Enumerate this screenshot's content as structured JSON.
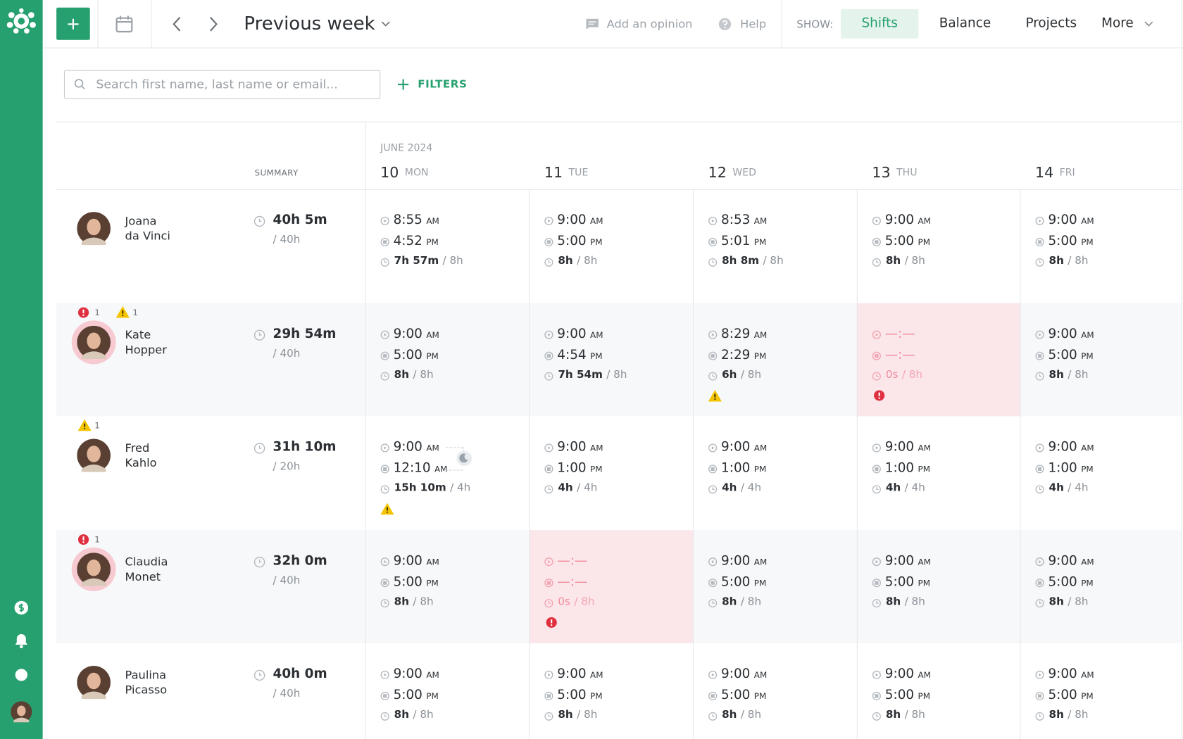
{
  "header": {
    "title": "Previous week",
    "add_opinion": "Add an opinion",
    "help": "Help",
    "show_label": "SHOW:",
    "tabs": [
      "Shifts",
      "Balance",
      "Projects",
      "More"
    ],
    "active_tab": 0
  },
  "toolbar": {
    "search_placeholder": "Search first name, last name or email...",
    "filters": "FILTERS"
  },
  "grid": {
    "summary_label": "SUMMARY",
    "month": "JUNE 2024",
    "days": [
      {
        "num": "10",
        "name": "MON"
      },
      {
        "num": "11",
        "name": "TUE"
      },
      {
        "num": "12",
        "name": "WED"
      },
      {
        "num": "13",
        "name": "THU"
      },
      {
        "num": "14",
        "name": "FRI"
      }
    ]
  },
  "employees": [
    {
      "first": "Joana",
      "last": "da Vinci",
      "total": "40h 5m",
      "target": "/ 40h",
      "days": [
        {
          "start": "8:55",
          "start_period": "AM",
          "end": "4:52",
          "end_period": "PM",
          "duration": "7h 57m",
          "target": "/ 8h"
        },
        {
          "start": "9:00",
          "start_period": "AM",
          "end": "5:00",
          "end_period": "PM",
          "duration": "8h",
          "target": "/ 8h"
        },
        {
          "start": "8:53",
          "start_period": "AM",
          "end": "5:01",
          "end_period": "PM",
          "duration": "8h 8m",
          "target": "/ 8h"
        },
        {
          "start": "9:00",
          "start_period": "AM",
          "end": "5:00",
          "end_period": "PM",
          "duration": "8h",
          "target": "/ 8h"
        },
        {
          "start": "9:00",
          "start_period": "AM",
          "end": "5:00",
          "end_period": "PM",
          "duration": "8h",
          "target": "/ 8h"
        }
      ]
    },
    {
      "first": "Kate",
      "last": "Hopper",
      "total": "29h 54m",
      "target": "/ 40h",
      "errors": 1,
      "warnings": 1,
      "days": [
        {
          "start": "9:00",
          "start_period": "AM",
          "end": "5:00",
          "end_period": "PM",
          "duration": "8h",
          "target": "/ 8h"
        },
        {
          "start": "9:00",
          "start_period": "AM",
          "end": "4:54",
          "end_period": "PM",
          "duration": "7h 54m",
          "target": "/ 8h"
        },
        {
          "start": "8:29",
          "start_period": "AM",
          "end": "2:29",
          "end_period": "PM",
          "duration": "6h",
          "target": "/ 8h",
          "alert": "warning"
        },
        {
          "start": "—:—",
          "end": "—:—",
          "duration": "0s",
          "target": "/ 8h",
          "missing": true,
          "alert": "error"
        },
        {
          "start": "9:00",
          "start_period": "AM",
          "end": "5:00",
          "end_period": "PM",
          "duration": "8h",
          "target": "/ 8h"
        }
      ]
    },
    {
      "first": "Fred",
      "last": "Kahlo",
      "total": "31h 10m",
      "target": "/ 20h",
      "warnings": 1,
      "days": [
        {
          "start": "9:00",
          "start_period": "AM",
          "end": "12:10",
          "end_period": "AM",
          "duration": "15h 10m",
          "target": "/ 4h",
          "alert": "warning",
          "overnight": true
        },
        {
          "start": "9:00",
          "start_period": "AM",
          "end": "1:00",
          "end_period": "PM",
          "duration": "4h",
          "target": "/ 4h"
        },
        {
          "start": "9:00",
          "start_period": "AM",
          "end": "1:00",
          "end_period": "PM",
          "duration": "4h",
          "target": "/ 4h"
        },
        {
          "start": "9:00",
          "start_period": "AM",
          "end": "1:00",
          "end_period": "PM",
          "duration": "4h",
          "target": "/ 4h"
        },
        {
          "start": "9:00",
          "start_period": "AM",
          "end": "1:00",
          "end_period": "PM",
          "duration": "4h",
          "target": "/ 4h"
        }
      ]
    },
    {
      "first": "Claudia",
      "last": "Monet",
      "total": "32h 0m",
      "target": "/ 40h",
      "errors": 1,
      "days": [
        {
          "start": "9:00",
          "start_period": "AM",
          "end": "5:00",
          "end_period": "PM",
          "duration": "8h",
          "target": "/ 8h"
        },
        {
          "start": "—:—",
          "end": "—:—",
          "duration": "0s",
          "target": "/ 8h",
          "missing": true,
          "alert": "error"
        },
        {
          "start": "9:00",
          "start_period": "AM",
          "end": "5:00",
          "end_period": "PM",
          "duration": "8h",
          "target": "/ 8h"
        },
        {
          "start": "9:00",
          "start_period": "AM",
          "end": "5:00",
          "end_period": "PM",
          "duration": "8h",
          "target": "/ 8h"
        },
        {
          "start": "9:00",
          "start_period": "AM",
          "end": "5:00",
          "end_period": "PM",
          "duration": "8h",
          "target": "/ 8h"
        }
      ]
    },
    {
      "first": "Paulina",
      "last": "Picasso",
      "total": "40h 0m",
      "target": "/ 40h",
      "days": [
        {
          "start": "9:00",
          "start_period": "AM",
          "end": "5:00",
          "end_period": "PM",
          "duration": "8h",
          "target": "/ 8h"
        },
        {
          "start": "9:00",
          "start_period": "AM",
          "end": "5:00",
          "end_period": "PM",
          "duration": "8h",
          "target": "/ 8h"
        },
        {
          "start": "9:00",
          "start_period": "AM",
          "end": "5:00",
          "end_period": "PM",
          "duration": "8h",
          "target": "/ 8h"
        },
        {
          "start": "9:00",
          "start_period": "AM",
          "end": "5:00",
          "end_period": "PM",
          "duration": "8h",
          "target": "/ 8h"
        },
        {
          "start": "9:00",
          "start_period": "AM",
          "end": "5:00",
          "end_period": "PM",
          "duration": "8h",
          "target": "/ 8h"
        }
      ]
    }
  ]
}
